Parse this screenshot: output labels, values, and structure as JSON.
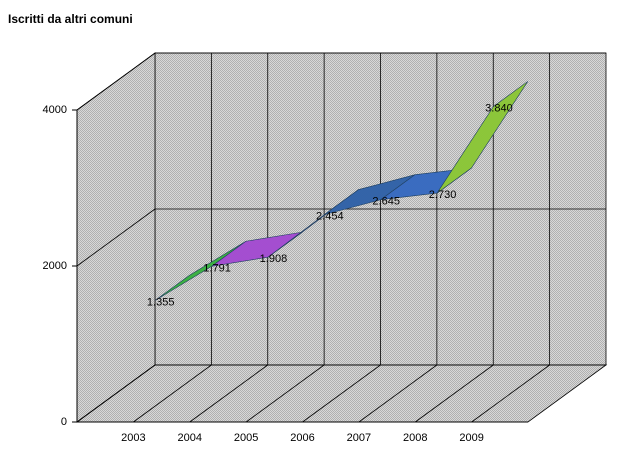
{
  "chart_data": {
    "type": "line3d",
    "title": "Iscritti da altri comuni",
    "categories": [
      "2003",
      "2004",
      "2005",
      "2006",
      "2007",
      "2008",
      "2009"
    ],
    "values": [
      1355,
      1791,
      1908,
      2454,
      2645,
      2730,
      3840
    ],
    "value_labels": [
      "1.355",
      "1.791",
      "1.908",
      "2.454",
      "2.645",
      "2.730",
      "3.840"
    ],
    "segment_colors": [
      "#3cb043",
      "#a44ed0",
      "#8a5cc8",
      "#3464a8",
      "#3a6cc0",
      "#8cc63a",
      "#3cc8c8"
    ],
    "ylim": [
      0,
      4000
    ],
    "yticks": [
      0,
      2000,
      4000
    ],
    "grid": true
  }
}
